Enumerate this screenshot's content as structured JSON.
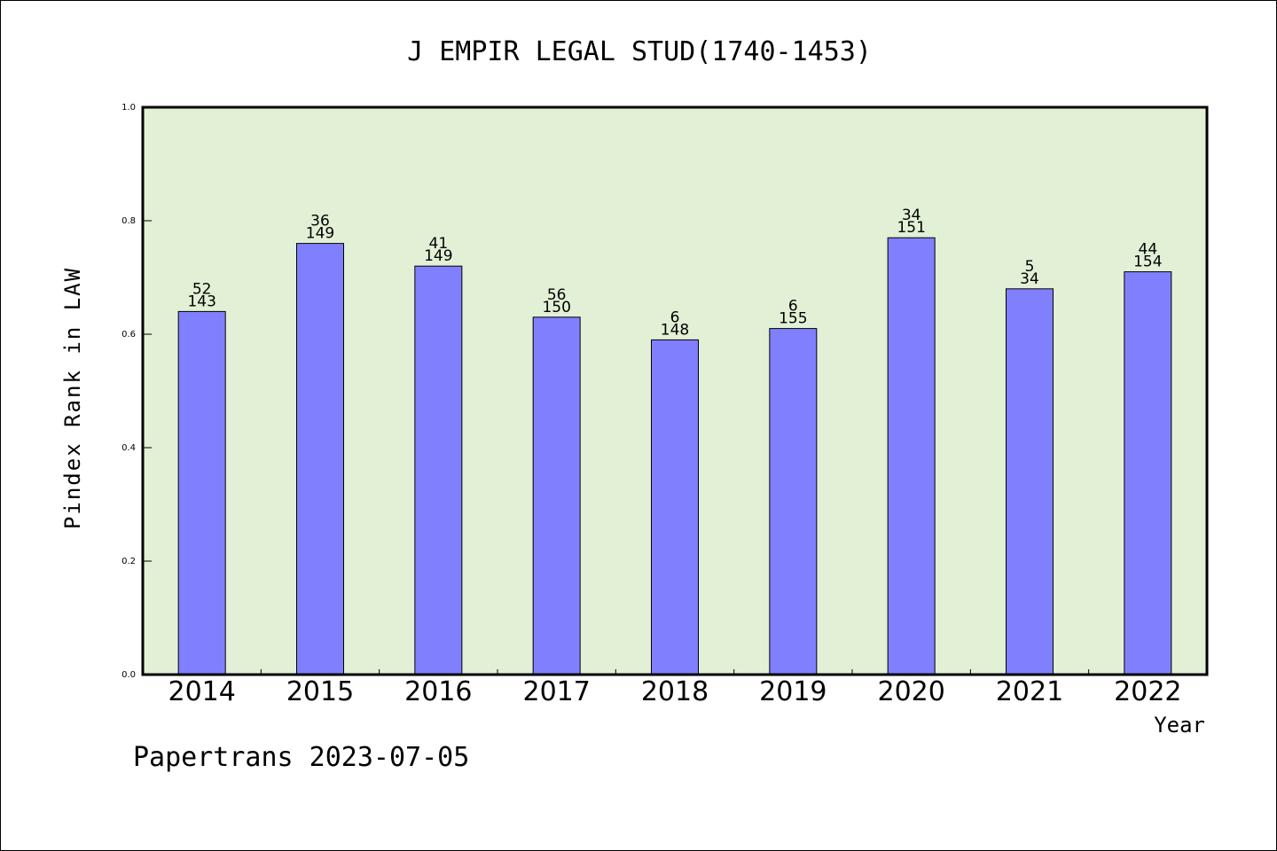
{
  "chart_data": {
    "type": "bar",
    "title": "J EMPIR LEGAL STUD(1740-1453)",
    "xlabel": "Year",
    "ylabel": "Pindex Rank in LAW",
    "footer": "Papertrans 2023-07-05",
    "categories": [
      "2014",
      "2015",
      "2016",
      "2017",
      "2018",
      "2019",
      "2020",
      "2021",
      "2022"
    ],
    "series": [
      {
        "values": [
          0.64,
          0.76,
          0.72,
          0.63,
          0.59,
          0.61,
          0.77,
          0.68,
          0.71
        ],
        "label_top": [
          "52",
          "36",
          "41",
          "56",
          "6",
          "6",
          "34",
          "5",
          "44"
        ],
        "label_bottom": [
          "143",
          "149",
          "149",
          "150",
          "148",
          "155",
          "151",
          "34",
          "154"
        ]
      }
    ],
    "ylim": [
      0,
      1.0
    ],
    "yticks": [
      0.0,
      0.2,
      0.4,
      0.6,
      0.8,
      1.0
    ],
    "ytick_labels": [
      "0.0",
      "0.2",
      "0.4",
      "0.6",
      "0.8",
      "1.0"
    ],
    "grid": false,
    "legend": "none",
    "colors": {
      "bar_fill": "#8080ff",
      "bar_stroke": "#000000",
      "plot_background": "#e2f0d6",
      "axis": "#000000"
    }
  }
}
